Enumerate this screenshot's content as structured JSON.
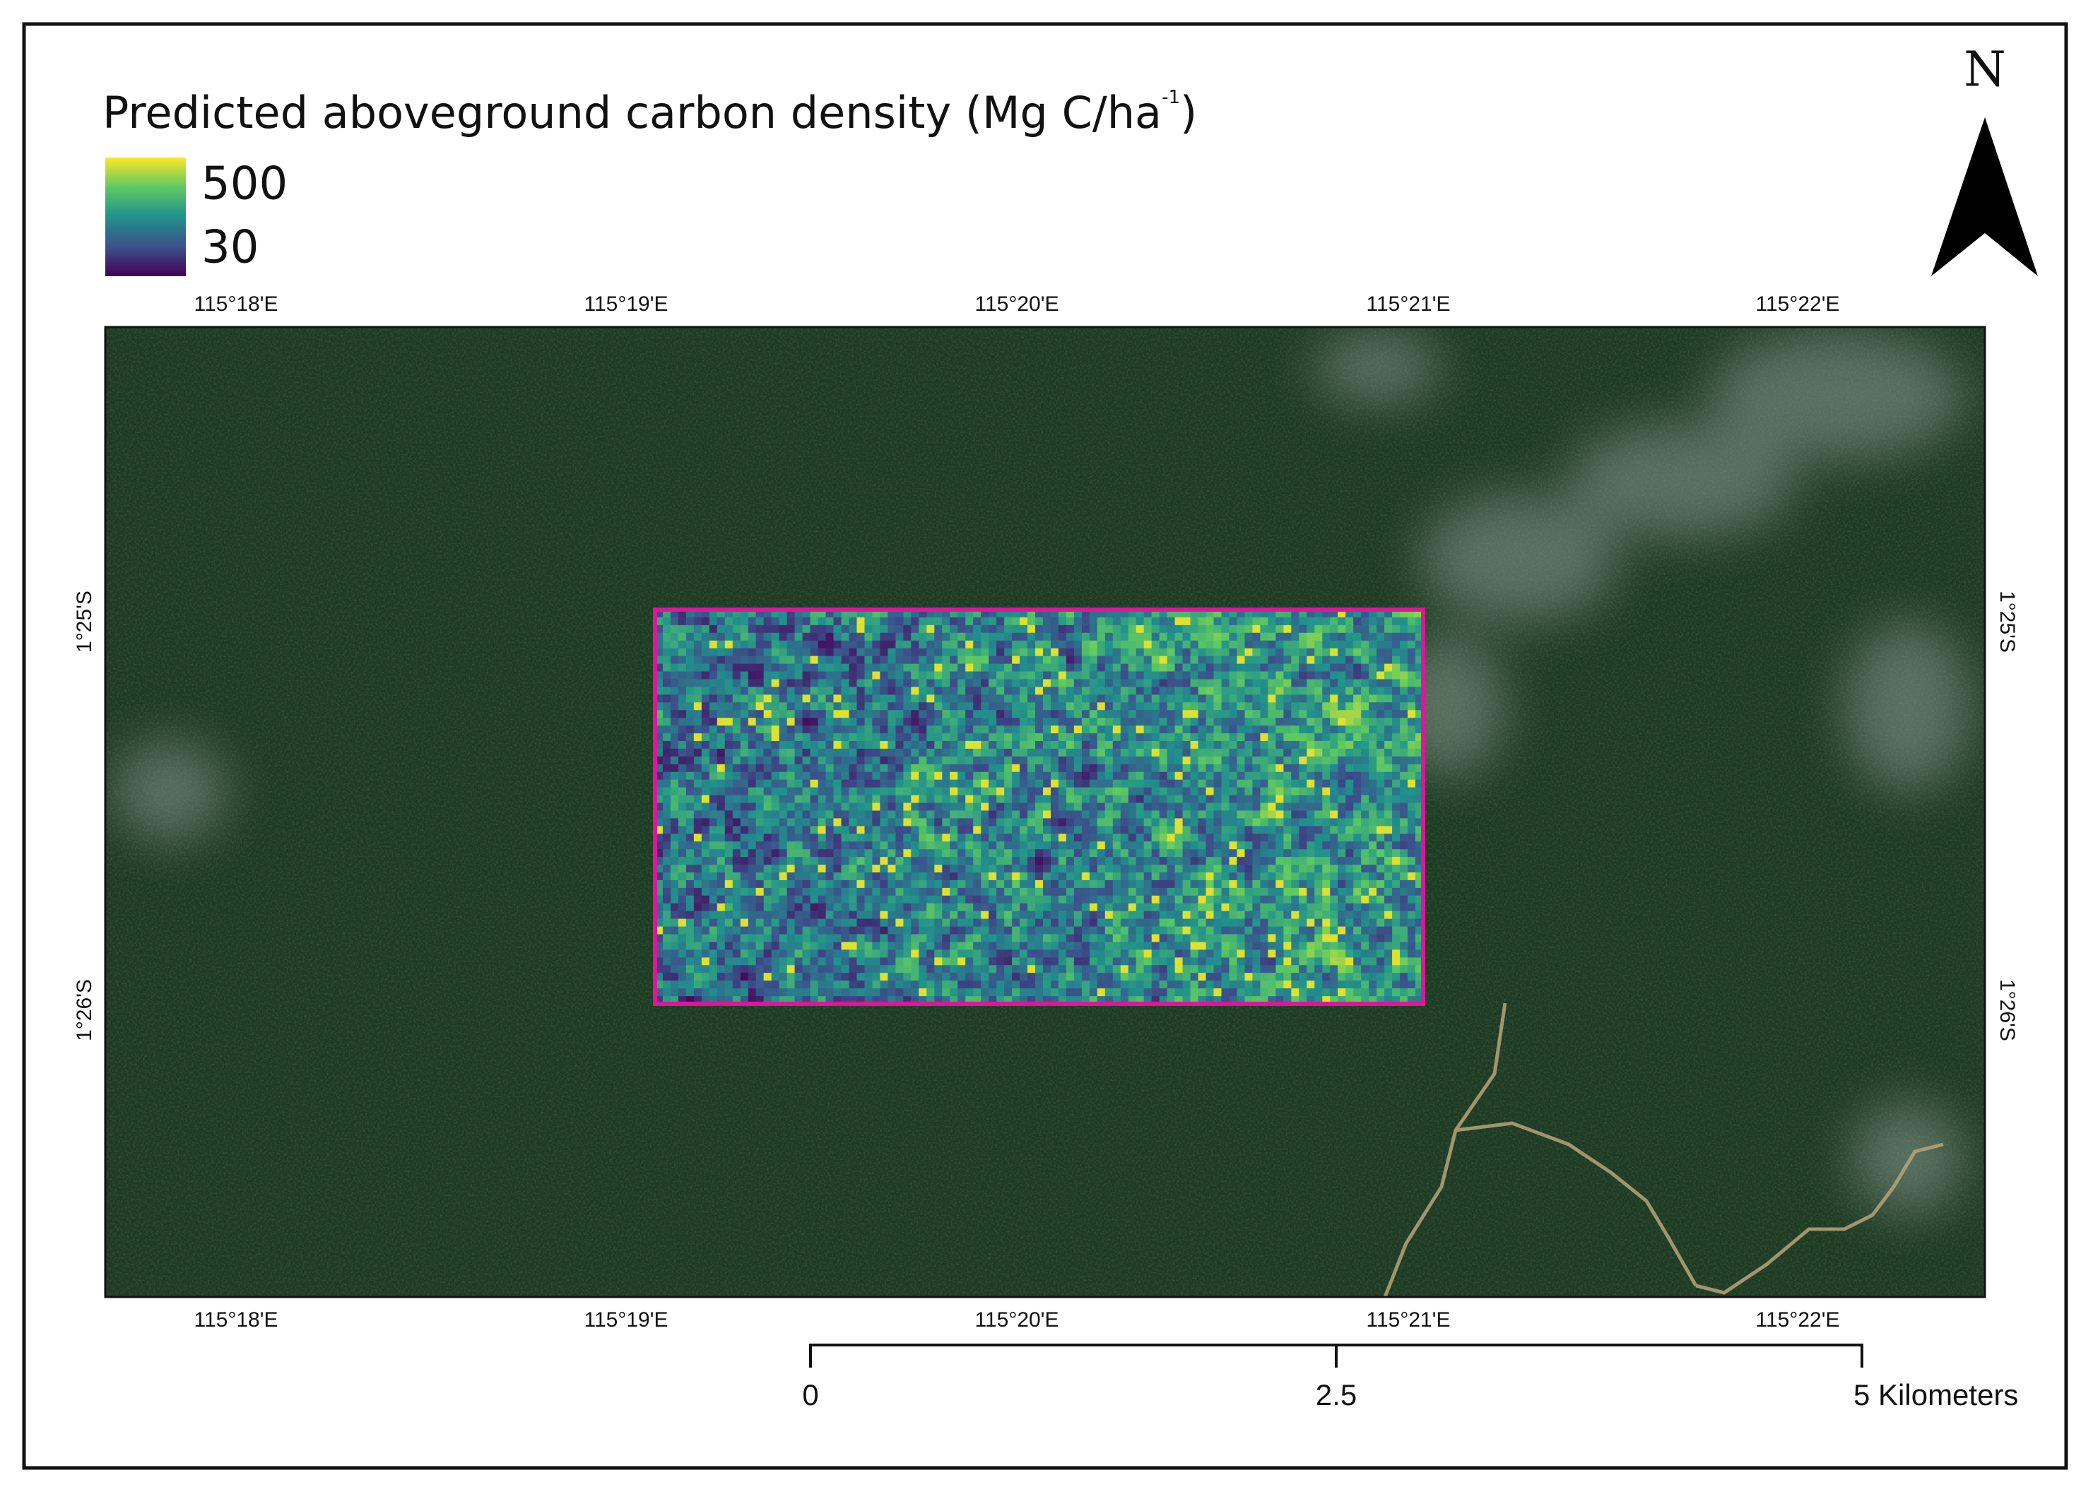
{
  "legend": {
    "title": {
      "text": "Predicted aboveground carbon density (Mg C/ha",
      "superscript": "-1",
      "suffix": ")"
    },
    "max_label": "500",
    "min_label": "30"
  },
  "north_arrow": {
    "label": "N"
  },
  "longitude_labels": [
    "115°18'E",
    "115°19'E",
    "115°20'E",
    "115°21'E",
    "115°22'E"
  ],
  "latitude_labels": [
    "1°25'S",
    "1°26'S"
  ],
  "scale_bar": {
    "ticks": [
      0,
      2.5,
      5
    ],
    "unit": "Kilometers"
  }
}
